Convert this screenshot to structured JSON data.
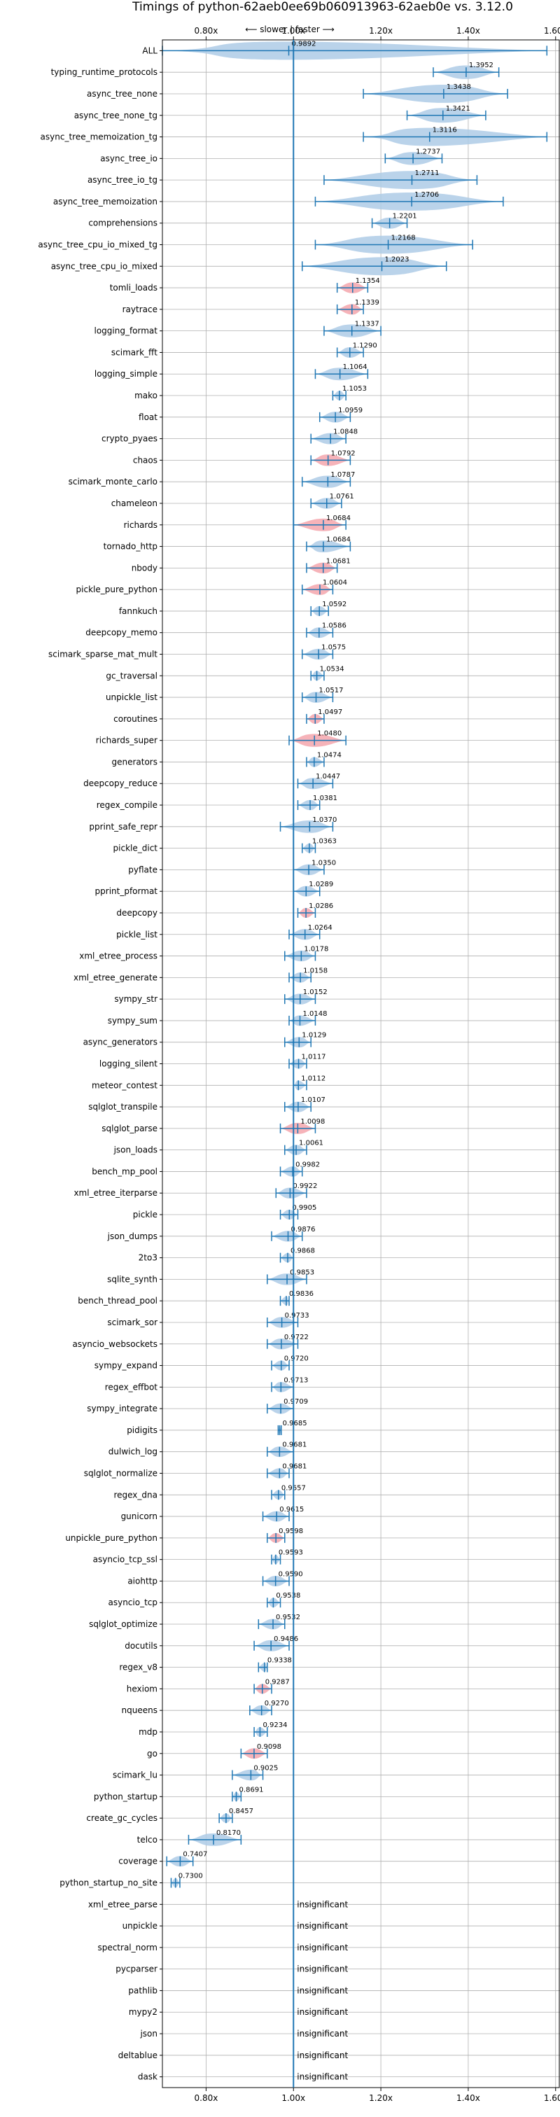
{
  "chart_data": {
    "type": "violin",
    "title": "Timings of python-62aeb0ee69b060913963-62aeb0e vs. 3.12.0",
    "subtitle": "⟵ slower | faster ⟶",
    "xlabel": "",
    "ylabel": "",
    "xlim": [
      0.7,
      1.61
    ],
    "x_ticks": [
      0.8,
      1.0,
      1.2,
      1.4,
      1.6
    ],
    "x_tick_labels": [
      "0.80x",
      "1.00x",
      "1.20x",
      "1.40x",
      "1.60x"
    ],
    "reference_line": 1.0,
    "grid": true,
    "colors": {
      "faster": "#1f77b4",
      "faster_fill": "#aecbe6",
      "slower_highlight": "#f4a6ad",
      "axis": "#000000",
      "grid": "#b0b0b0"
    },
    "insignificant_label": "insignificant",
    "benchmarks": [
      {
        "name": "ALL",
        "value": 0.9892,
        "min": 0.7,
        "max": 1.58
      },
      {
        "name": "typing_runtime_protocols",
        "value": 1.3952,
        "min": 1.32,
        "max": 1.47
      },
      {
        "name": "async_tree_none",
        "value": 1.3438,
        "min": 1.16,
        "max": 1.49
      },
      {
        "name": "async_tree_none_tg",
        "value": 1.3421,
        "min": 1.26,
        "max": 1.44
      },
      {
        "name": "async_tree_memoization_tg",
        "value": 1.3116,
        "min": 1.16,
        "max": 1.58
      },
      {
        "name": "async_tree_io",
        "value": 1.2737,
        "min": 1.21,
        "max": 1.34
      },
      {
        "name": "async_tree_io_tg",
        "value": 1.2711,
        "min": 1.07,
        "max": 1.42
      },
      {
        "name": "async_tree_memoization",
        "value": 1.2706,
        "min": 1.05,
        "max": 1.48
      },
      {
        "name": "comprehensions",
        "value": 1.2201,
        "min": 1.18,
        "max": 1.26
      },
      {
        "name": "async_tree_cpu_io_mixed_tg",
        "value": 1.2168,
        "min": 1.05,
        "max": 1.41
      },
      {
        "name": "async_tree_cpu_io_mixed",
        "value": 1.2023,
        "min": 1.02,
        "max": 1.35
      },
      {
        "name": "tomli_loads",
        "value": 1.1354,
        "min": 1.1,
        "max": 1.17,
        "highlight": true
      },
      {
        "name": "raytrace",
        "value": 1.1339,
        "min": 1.1,
        "max": 1.16,
        "highlight": true
      },
      {
        "name": "logging_format",
        "value": 1.1337,
        "min": 1.07,
        "max": 1.2
      },
      {
        "name": "scimark_fft",
        "value": 1.129,
        "min": 1.1,
        "max": 1.16
      },
      {
        "name": "logging_simple",
        "value": 1.1064,
        "min": 1.05,
        "max": 1.17
      },
      {
        "name": "mako",
        "value": 1.1053,
        "min": 1.09,
        "max": 1.12
      },
      {
        "name": "float",
        "value": 1.0959,
        "min": 1.06,
        "max": 1.13
      },
      {
        "name": "crypto_pyaes",
        "value": 1.0848,
        "min": 1.04,
        "max": 1.12
      },
      {
        "name": "chaos",
        "value": 1.0792,
        "min": 1.04,
        "max": 1.13,
        "highlight": true
      },
      {
        "name": "scimark_monte_carlo",
        "value": 1.0787,
        "min": 1.02,
        "max": 1.13
      },
      {
        "name": "chameleon",
        "value": 1.0761,
        "min": 1.04,
        "max": 1.11
      },
      {
        "name": "richards",
        "value": 1.0684,
        "min": 1.0,
        "max": 1.12,
        "highlight": true
      },
      {
        "name": "tornado_http",
        "value": 1.0684,
        "min": 1.03,
        "max": 1.13
      },
      {
        "name": "nbody",
        "value": 1.0681,
        "min": 1.03,
        "max": 1.1,
        "highlight": true
      },
      {
        "name": "pickle_pure_python",
        "value": 1.0604,
        "min": 1.02,
        "max": 1.09,
        "highlight": true
      },
      {
        "name": "fannkuch",
        "value": 1.0592,
        "min": 1.04,
        "max": 1.08
      },
      {
        "name": "deepcopy_memo",
        "value": 1.0586,
        "min": 1.03,
        "max": 1.09
      },
      {
        "name": "scimark_sparse_mat_mult",
        "value": 1.0575,
        "min": 1.02,
        "max": 1.09
      },
      {
        "name": "gc_traversal",
        "value": 1.0534,
        "min": 1.04,
        "max": 1.07
      },
      {
        "name": "unpickle_list",
        "value": 1.0517,
        "min": 1.02,
        "max": 1.09
      },
      {
        "name": "coroutines",
        "value": 1.0497,
        "min": 1.03,
        "max": 1.07,
        "highlight": true
      },
      {
        "name": "richards_super",
        "value": 1.048,
        "min": 0.99,
        "max": 1.12,
        "highlight": true
      },
      {
        "name": "generators",
        "value": 1.0474,
        "min": 1.03,
        "max": 1.07
      },
      {
        "name": "deepcopy_reduce",
        "value": 1.0447,
        "min": 1.01,
        "max": 1.09
      },
      {
        "name": "regex_compile",
        "value": 1.0381,
        "min": 1.01,
        "max": 1.06
      },
      {
        "name": "pprint_safe_repr",
        "value": 1.037,
        "min": 0.97,
        "max": 1.09
      },
      {
        "name": "pickle_dict",
        "value": 1.0363,
        "min": 1.02,
        "max": 1.05
      },
      {
        "name": "pyflate",
        "value": 1.035,
        "min": 1.0,
        "max": 1.07
      },
      {
        "name": "pprint_pformat",
        "value": 1.0289,
        "min": 1.0,
        "max": 1.06
      },
      {
        "name": "deepcopy",
        "value": 1.0286,
        "min": 1.01,
        "max": 1.05,
        "highlight": true
      },
      {
        "name": "pickle_list",
        "value": 1.0264,
        "min": 0.99,
        "max": 1.06
      },
      {
        "name": "xml_etree_process",
        "value": 1.0178,
        "min": 0.98,
        "max": 1.05
      },
      {
        "name": "xml_etree_generate",
        "value": 1.0158,
        "min": 0.99,
        "max": 1.04
      },
      {
        "name": "sympy_str",
        "value": 1.0152,
        "min": 0.98,
        "max": 1.05
      },
      {
        "name": "sympy_sum",
        "value": 1.0148,
        "min": 0.99,
        "max": 1.05
      },
      {
        "name": "async_generators",
        "value": 1.0129,
        "min": 0.98,
        "max": 1.04
      },
      {
        "name": "logging_silent",
        "value": 1.0117,
        "min": 0.99,
        "max": 1.03
      },
      {
        "name": "meteor_contest",
        "value": 1.0112,
        "min": 1.0,
        "max": 1.03
      },
      {
        "name": "sqlglot_transpile",
        "value": 1.0107,
        "min": 0.98,
        "max": 1.04
      },
      {
        "name": "sqlglot_parse",
        "value": 1.0098,
        "min": 0.97,
        "max": 1.05,
        "highlight": true
      },
      {
        "name": "json_loads",
        "value": 1.0061,
        "min": 0.98,
        "max": 1.03
      },
      {
        "name": "bench_mp_pool",
        "value": 0.9982,
        "min": 0.97,
        "max": 1.02
      },
      {
        "name": "xml_etree_iterparse",
        "value": 0.9922,
        "min": 0.96,
        "max": 1.03
      },
      {
        "name": "pickle",
        "value": 0.9905,
        "min": 0.97,
        "max": 1.01
      },
      {
        "name": "json_dumps",
        "value": 0.9876,
        "min": 0.95,
        "max": 1.02
      },
      {
        "name": "2to3",
        "value": 0.9868,
        "min": 0.97,
        "max": 1.0
      },
      {
        "name": "sqlite_synth",
        "value": 0.9853,
        "min": 0.94,
        "max": 1.03
      },
      {
        "name": "bench_thread_pool",
        "value": 0.9836,
        "min": 0.97,
        "max": 0.99
      },
      {
        "name": "scimark_sor",
        "value": 0.9733,
        "min": 0.94,
        "max": 1.01
      },
      {
        "name": "asyncio_websockets",
        "value": 0.9722,
        "min": 0.94,
        "max": 1.01
      },
      {
        "name": "sympy_expand",
        "value": 0.972,
        "min": 0.95,
        "max": 0.99
      },
      {
        "name": "regex_effbot",
        "value": 0.9713,
        "min": 0.95,
        "max": 1.0
      },
      {
        "name": "sympy_integrate",
        "value": 0.9709,
        "min": 0.94,
        "max": 1.0
      },
      {
        "name": "pidigits",
        "value": 0.9685,
        "min": 0.965,
        "max": 0.972
      },
      {
        "name": "dulwich_log",
        "value": 0.9681,
        "min": 0.94,
        "max": 1.0
      },
      {
        "name": "sqlglot_normalize",
        "value": 0.9681,
        "min": 0.94,
        "max": 0.99
      },
      {
        "name": "regex_dna",
        "value": 0.9657,
        "min": 0.95,
        "max": 0.98
      },
      {
        "name": "gunicorn",
        "value": 0.9615,
        "min": 0.93,
        "max": 0.99
      },
      {
        "name": "unpickle_pure_python",
        "value": 0.9598,
        "min": 0.94,
        "max": 0.98,
        "highlight": true
      },
      {
        "name": "asyncio_tcp_ssl",
        "value": 0.9593,
        "min": 0.95,
        "max": 0.97
      },
      {
        "name": "aiohttp",
        "value": 0.959,
        "min": 0.93,
        "max": 0.99
      },
      {
        "name": "asyncio_tcp",
        "value": 0.9538,
        "min": 0.94,
        "max": 0.97
      },
      {
        "name": "sqlglot_optimize",
        "value": 0.9532,
        "min": 0.92,
        "max": 0.98
      },
      {
        "name": "docutils",
        "value": 0.9486,
        "min": 0.91,
        "max": 0.99
      },
      {
        "name": "regex_v8",
        "value": 0.9338,
        "min": 0.92,
        "max": 0.94
      },
      {
        "name": "hexiom",
        "value": 0.9287,
        "min": 0.91,
        "max": 0.95,
        "highlight": true
      },
      {
        "name": "nqueens",
        "value": 0.927,
        "min": 0.9,
        "max": 0.95
      },
      {
        "name": "mdp",
        "value": 0.9234,
        "min": 0.91,
        "max": 0.94
      },
      {
        "name": "go",
        "value": 0.9098,
        "min": 0.88,
        "max": 0.94,
        "highlight": true
      },
      {
        "name": "scimark_lu",
        "value": 0.9025,
        "min": 0.86,
        "max": 0.93
      },
      {
        "name": "python_startup",
        "value": 0.8691,
        "min": 0.86,
        "max": 0.88
      },
      {
        "name": "create_gc_cycles",
        "value": 0.8457,
        "min": 0.83,
        "max": 0.86
      },
      {
        "name": "telco",
        "value": 0.817,
        "min": 0.76,
        "max": 0.88
      },
      {
        "name": "coverage",
        "value": 0.7407,
        "min": 0.71,
        "max": 0.77
      },
      {
        "name": "python_startup_no_site",
        "value": 0.73,
        "min": 0.72,
        "max": 0.74
      },
      {
        "name": "xml_etree_parse",
        "insignificant": true
      },
      {
        "name": "unpickle",
        "insignificant": true
      },
      {
        "name": "spectral_norm",
        "insignificant": true
      },
      {
        "name": "pycparser",
        "insignificant": true
      },
      {
        "name": "pathlib",
        "insignificant": true
      },
      {
        "name": "mypy2",
        "insignificant": true
      },
      {
        "name": "json",
        "insignificant": true
      },
      {
        "name": "deltablue",
        "insignificant": true
      },
      {
        "name": "dask",
        "insignificant": true
      }
    ]
  }
}
